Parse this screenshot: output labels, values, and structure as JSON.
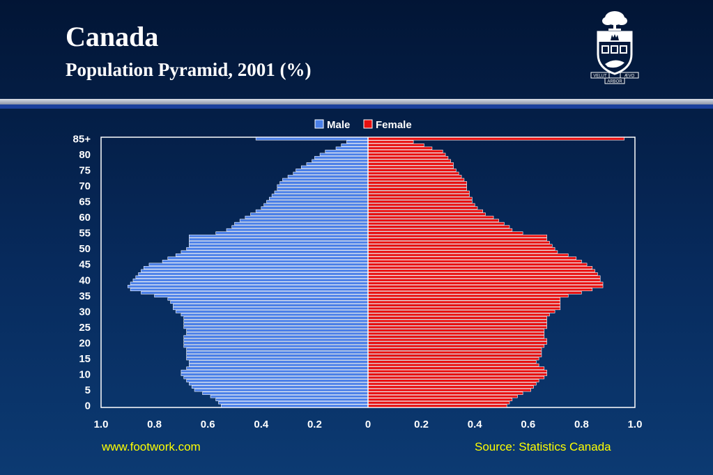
{
  "header": {
    "title": "Canada",
    "subtitle": "Population Pyramid, 2001 (%)"
  },
  "logo": {
    "icon": "university-crest-icon",
    "motto_left": "VELUT",
    "motto_right": "ÆVO",
    "motto_bottom": "ARBOR"
  },
  "footer": {
    "left_text": "www.footwork.com",
    "right_text": "Source: Statistics Canada"
  },
  "colors": {
    "male": "#4a7fe8",
    "female": "#e81010",
    "text": "#ffffff",
    "footer": "#ffff00"
  },
  "chart_data": {
    "type": "bar",
    "orientation": "horizontal-pyramid",
    "legend": {
      "placement": "top-center",
      "entries": [
        "Male",
        "Female"
      ]
    },
    "y_tick_labels": [
      "0",
      "5",
      "10",
      "15",
      "20",
      "25",
      "30",
      "35",
      "40",
      "45",
      "50",
      "55",
      "60",
      "65",
      "70",
      "75",
      "80",
      "85+"
    ],
    "x_tick_labels": [
      "1.0",
      "0.8",
      "0.6",
      "0.4",
      "0.2",
      "0",
      "0.2",
      "0.4",
      "0.6",
      "0.8",
      "1.0"
    ],
    "xlim": [
      -1.0,
      1.0
    ],
    "ages": [
      0,
      1,
      2,
      3,
      4,
      5,
      6,
      7,
      8,
      9,
      10,
      11,
      12,
      13,
      14,
      15,
      16,
      17,
      18,
      19,
      20,
      21,
      22,
      23,
      24,
      25,
      26,
      27,
      28,
      29,
      30,
      31,
      32,
      33,
      34,
      35,
      36,
      37,
      38,
      39,
      40,
      41,
      42,
      43,
      44,
      45,
      46,
      47,
      48,
      49,
      50,
      51,
      52,
      53,
      54,
      55,
      56,
      57,
      58,
      59,
      60,
      61,
      62,
      63,
      64,
      65,
      66,
      67,
      68,
      69,
      70,
      71,
      72,
      73,
      74,
      75,
      76,
      77,
      78,
      79,
      80,
      81,
      82,
      83,
      84,
      "85+"
    ],
    "series": [
      {
        "name": "Male",
        "values": [
          0.55,
          0.56,
          0.57,
          0.59,
          0.62,
          0.65,
          0.66,
          0.67,
          0.68,
          0.69,
          0.7,
          0.7,
          0.68,
          0.67,
          0.67,
          0.68,
          0.68,
          0.68,
          0.68,
          0.69,
          0.69,
          0.69,
          0.69,
          0.68,
          0.68,
          0.69,
          0.69,
          0.69,
          0.69,
          0.7,
          0.72,
          0.73,
          0.73,
          0.74,
          0.75,
          0.8,
          0.85,
          0.89,
          0.9,
          0.89,
          0.88,
          0.87,
          0.86,
          0.85,
          0.84,
          0.82,
          0.77,
          0.75,
          0.72,
          0.7,
          0.68,
          0.67,
          0.67,
          0.67,
          0.67,
          0.57,
          0.53,
          0.51,
          0.5,
          0.48,
          0.46,
          0.44,
          0.42,
          0.4,
          0.39,
          0.38,
          0.37,
          0.36,
          0.35,
          0.34,
          0.34,
          0.33,
          0.32,
          0.3,
          0.28,
          0.27,
          0.25,
          0.23,
          0.21,
          0.2,
          0.18,
          0.16,
          0.12,
          0.1,
          0.08,
          0.42
        ]
      },
      {
        "name": "Female",
        "values": [
          0.52,
          0.53,
          0.54,
          0.56,
          0.58,
          0.61,
          0.62,
          0.63,
          0.64,
          0.66,
          0.67,
          0.67,
          0.66,
          0.64,
          0.63,
          0.64,
          0.65,
          0.65,
          0.65,
          0.66,
          0.67,
          0.67,
          0.66,
          0.66,
          0.66,
          0.67,
          0.67,
          0.67,
          0.67,
          0.68,
          0.7,
          0.72,
          0.72,
          0.72,
          0.72,
          0.75,
          0.8,
          0.84,
          0.88,
          0.88,
          0.87,
          0.87,
          0.86,
          0.85,
          0.84,
          0.82,
          0.8,
          0.78,
          0.75,
          0.71,
          0.7,
          0.69,
          0.68,
          0.67,
          0.67,
          0.58,
          0.54,
          0.53,
          0.51,
          0.49,
          0.47,
          0.44,
          0.43,
          0.41,
          0.4,
          0.39,
          0.39,
          0.38,
          0.38,
          0.37,
          0.37,
          0.37,
          0.36,
          0.35,
          0.34,
          0.33,
          0.32,
          0.32,
          0.31,
          0.3,
          0.29,
          0.28,
          0.24,
          0.21,
          0.17,
          0.96
        ]
      }
    ]
  }
}
